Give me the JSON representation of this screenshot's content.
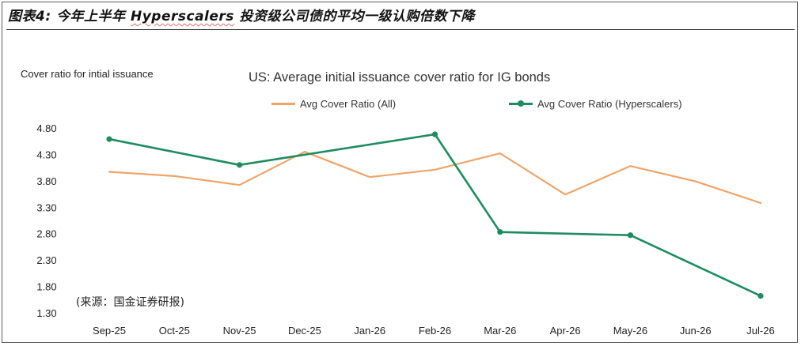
{
  "figure": {
    "title_prefix": "图表4:",
    "title_main_a": "今年上半年",
    "title_highlight": "Hyperscalers",
    "title_main_b": "投资级公司债的平均一级认购倍数下降",
    "source": "(来源：国金证券研报)"
  },
  "chart_data": {
    "type": "line",
    "title": "US: Average initial issuance cover ratio for IG bonds",
    "ylabel": "Cover ratio for intial issuance",
    "xlabel": "",
    "categories": [
      "Sep-25",
      "Oct-25",
      "Nov-25",
      "Dec-25",
      "Jan-26",
      "Feb-26",
      "Mar-26",
      "Apr-26",
      "May-26",
      "Jun-26",
      "Jul-26"
    ],
    "yticks": [
      "1.30",
      "1.80",
      "2.30",
      "2.80",
      "3.30",
      "3.80",
      "4.30",
      "4.80"
    ],
    "ylim": [
      1.3,
      4.8
    ],
    "grid": false,
    "legend_position": "top",
    "series": [
      {
        "name": "Avg Cover Ratio (All)",
        "color": "#f0a46a",
        "markers": false,
        "values": [
          3.97,
          3.89,
          3.72,
          4.35,
          3.87,
          4.01,
          4.32,
          3.54,
          4.08,
          3.79,
          3.38
        ]
      },
      {
        "name": "Avg Cover Ratio (Hyperscalers)",
        "color": "#1e8c5f",
        "markers": true,
        "points": [
          {
            "x": "Sep-25",
            "y": 4.59
          },
          {
            "x": "Nov-25",
            "y": 4.1
          },
          {
            "x": "Feb-26",
            "y": 4.68
          },
          {
            "x": "Mar-26",
            "y": 2.83
          },
          {
            "x": "May-26",
            "y": 2.77
          },
          {
            "x": "Jul-26",
            "y": 1.62
          }
        ]
      }
    ]
  }
}
